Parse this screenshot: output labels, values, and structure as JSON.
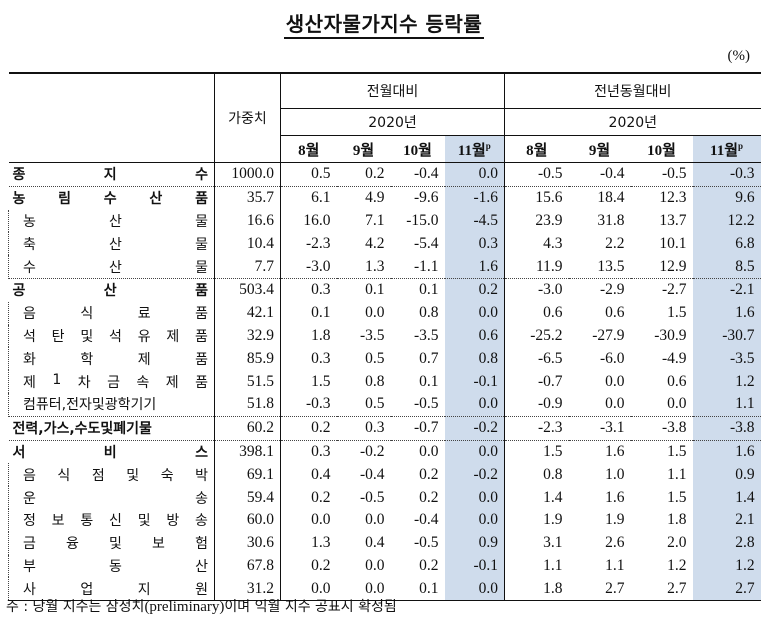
{
  "title": "생산자물가지수 등락률",
  "unit": "(%)",
  "header": {
    "weight_label": "가중치",
    "group1_label": "전월대비",
    "group2_label": "전년동월대비",
    "year1": "2020년",
    "year2": "2020년",
    "months": [
      "8월",
      "9월",
      "10월",
      "11월"
    ],
    "preliminary_mark": "p"
  },
  "rows": [
    {
      "name": [
        "종",
        "지",
        "수"
      ],
      "level": "major",
      "weight": "1000.0",
      "mom": [
        "0.5",
        "0.2",
        "-0.4",
        "0.0"
      ],
      "yoy": [
        "-0.5",
        "-0.4",
        "-0.5",
        "-0.3"
      ]
    },
    {
      "name": [
        "농",
        "림",
        "수",
        "산",
        "품"
      ],
      "level": "major",
      "weight": "35.7",
      "mom": [
        "6.1",
        "4.9",
        "-9.6",
        "-1.6"
      ],
      "yoy": [
        "15.6",
        "18.4",
        "12.3",
        "9.6"
      ]
    },
    {
      "name": [
        "농",
        "산",
        "물"
      ],
      "level": "sub",
      "weight": "16.6",
      "mom": [
        "16.0",
        "7.1",
        "-15.0",
        "-4.5"
      ],
      "yoy": [
        "23.9",
        "31.8",
        "13.7",
        "12.2"
      ]
    },
    {
      "name": [
        "축",
        "산",
        "물"
      ],
      "level": "sub",
      "weight": "10.4",
      "mom": [
        "-2.3",
        "4.2",
        "-5.4",
        "0.3"
      ],
      "yoy": [
        "4.3",
        "2.2",
        "10.1",
        "6.8"
      ]
    },
    {
      "name": [
        "수",
        "산",
        "물"
      ],
      "level": "sub",
      "weight": "7.7",
      "mom": [
        "-3.0",
        "1.3",
        "-1.1",
        "1.6"
      ],
      "yoy": [
        "11.9",
        "13.5",
        "12.9",
        "8.5"
      ]
    },
    {
      "name": [
        "공",
        "산",
        "품"
      ],
      "level": "major",
      "weight": "503.4",
      "mom": [
        "0.3",
        "0.1",
        "0.1",
        "0.2"
      ],
      "yoy": [
        "-3.0",
        "-2.9",
        "-2.7",
        "-2.1"
      ]
    },
    {
      "name": [
        "음",
        "식",
        "료",
        "품"
      ],
      "level": "sub",
      "weight": "42.1",
      "mom": [
        "0.1",
        "0.0",
        "0.8",
        "0.0"
      ],
      "yoy": [
        "0.6",
        "0.6",
        "1.5",
        "1.6"
      ]
    },
    {
      "name": [
        "석",
        "탄",
        "및",
        "석",
        "유",
        "제",
        "품"
      ],
      "level": "sub",
      "weight": "32.9",
      "mom": [
        "1.8",
        "-3.5",
        "-3.5",
        "0.6"
      ],
      "yoy": [
        "-25.2",
        "-27.9",
        "-30.9",
        "-30.7"
      ]
    },
    {
      "name": [
        "화",
        "학",
        "제",
        "품"
      ],
      "level": "sub",
      "weight": "85.9",
      "mom": [
        "0.3",
        "0.5",
        "0.7",
        "0.8"
      ],
      "yoy": [
        "-6.5",
        "-6.0",
        "-4.9",
        "-3.5"
      ]
    },
    {
      "name": [
        "제",
        "1",
        "차",
        "금",
        "속",
        "제",
        "품"
      ],
      "level": "sub",
      "weight": "51.5",
      "mom": [
        "1.5",
        "0.8",
        "0.1",
        "-0.1"
      ],
      "yoy": [
        "-0.7",
        "0.0",
        "0.6",
        "1.2"
      ]
    },
    {
      "name": [
        "컴퓨터,전자및광학기기"
      ],
      "level": "sub",
      "weight": "51.8",
      "mom": [
        "-0.3",
        "0.5",
        "-0.5",
        "0.0"
      ],
      "yoy": [
        "-0.9",
        "0.0",
        "0.0",
        "1.1"
      ]
    },
    {
      "name": [
        "전력,가스,수도및폐기물"
      ],
      "level": "major",
      "weight": "60.2",
      "mom": [
        "0.2",
        "0.3",
        "-0.7",
        "-0.2"
      ],
      "yoy": [
        "-2.3",
        "-3.1",
        "-3.8",
        "-3.8"
      ]
    },
    {
      "name": [
        "서",
        "비",
        "스"
      ],
      "level": "major",
      "weight": "398.1",
      "mom": [
        "0.3",
        "-0.2",
        "0.0",
        "0.0"
      ],
      "yoy": [
        "1.5",
        "1.6",
        "1.5",
        "1.6"
      ]
    },
    {
      "name": [
        "음",
        "식",
        "점",
        "및",
        "숙",
        "박"
      ],
      "level": "sub",
      "weight": "69.1",
      "mom": [
        "0.4",
        "-0.4",
        "0.2",
        "-0.2"
      ],
      "yoy": [
        "0.8",
        "1.0",
        "1.1",
        "0.9"
      ]
    },
    {
      "name": [
        "운",
        "송"
      ],
      "level": "sub",
      "weight": "59.4",
      "mom": [
        "0.2",
        "-0.5",
        "0.2",
        "0.0"
      ],
      "yoy": [
        "1.4",
        "1.6",
        "1.5",
        "1.4"
      ]
    },
    {
      "name": [
        "정",
        "보",
        "통",
        "신",
        "및",
        "방",
        "송"
      ],
      "level": "sub",
      "weight": "60.0",
      "mom": [
        "0.0",
        "0.0",
        "-0.4",
        "0.0"
      ],
      "yoy": [
        "1.9",
        "1.9",
        "1.8",
        "2.1"
      ]
    },
    {
      "name": [
        "금",
        "융",
        "및",
        "보",
        "험"
      ],
      "level": "sub",
      "weight": "30.6",
      "mom": [
        "1.3",
        "0.4",
        "-0.5",
        "0.9"
      ],
      "yoy": [
        "3.1",
        "2.6",
        "2.0",
        "2.8"
      ]
    },
    {
      "name": [
        "부",
        "동",
        "산"
      ],
      "level": "sub",
      "weight": "67.8",
      "mom": [
        "0.2",
        "0.0",
        "0.2",
        "-0.1"
      ],
      "yoy": [
        "1.1",
        "1.1",
        "1.2",
        "1.2"
      ]
    },
    {
      "name": [
        "사",
        "업",
        "지",
        "원"
      ],
      "level": "sub",
      "weight": "31.2",
      "mom": [
        "0.0",
        "0.0",
        "0.1",
        "0.0"
      ],
      "yoy": [
        "1.8",
        "2.7",
        "2.7",
        "2.7"
      ]
    }
  ],
  "note": {
    "prefix": "주 : 당월 지수는 잠정치",
    "english": "(preliminary)",
    "suffix": "이며 익월 지수 공표시 확정됨"
  },
  "colors": {
    "highlight": "#cfdcec"
  }
}
